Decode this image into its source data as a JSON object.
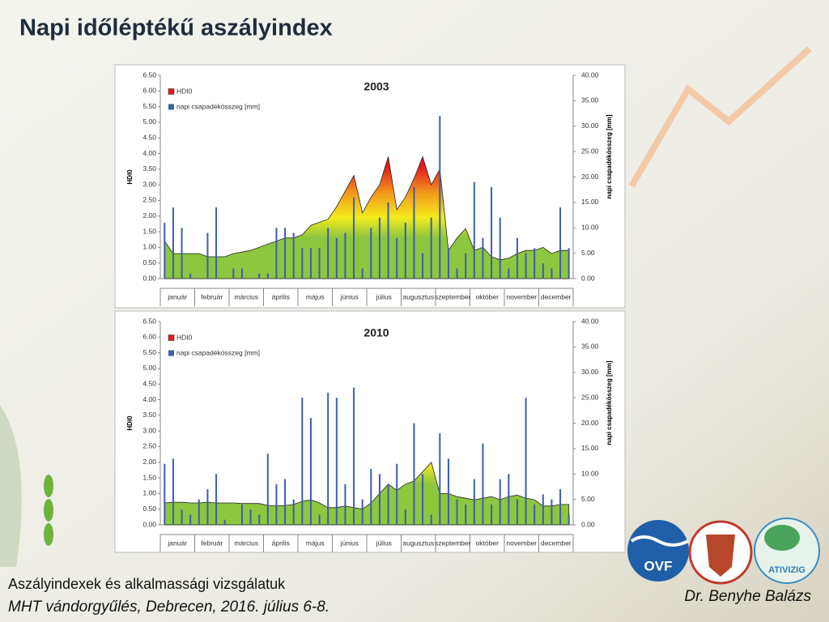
{
  "header": {
    "title": "Napi időléptékű aszályindex"
  },
  "chart_data": [
    {
      "type": "area-bar",
      "title": "2003",
      "categories": [
        "január",
        "február",
        "március",
        "április",
        "május",
        "június",
        "július",
        "augusztus",
        "szeptember",
        "október",
        "november",
        "december"
      ],
      "ylabel": "HDI0",
      "y2label": "napi csapadékösszeg [mm]",
      "ylim": [
        0,
        6.5
      ],
      "yticks": [
        {
          "value": 0,
          "label": "0.00"
        },
        {
          "value": 0.5,
          "label": "0.50"
        },
        {
          "value": 1,
          "label": "1.00"
        },
        {
          "value": 1.5,
          "label": "1.50"
        },
        {
          "value": 2,
          "label": "2.00"
        },
        {
          "value": 2.5,
          "label": "2.50"
        },
        {
          "value": 3,
          "label": "3.00"
        },
        {
          "value": 3.5,
          "label": "3.50"
        },
        {
          "value": 4,
          "label": "4.00"
        },
        {
          "value": 4.5,
          "label": "4.50"
        },
        {
          "value": 5,
          "label": "5.00"
        },
        {
          "value": 5.5,
          "label": "5.50"
        },
        {
          "value": 6,
          "label": "6.00"
        },
        {
          "value": 6.5,
          "label": "6.50"
        }
      ],
      "y2lim": [
        0,
        40
      ],
      "y2ticks": [
        {
          "value": 0,
          "label": "0.00"
        },
        {
          "value": 5,
          "label": "5.00"
        },
        {
          "value": 10,
          "label": "10.00"
        },
        {
          "value": 15,
          "label": "15.00"
        },
        {
          "value": 20,
          "label": "20.00"
        },
        {
          "value": 25,
          "label": "25.00"
        },
        {
          "value": 30,
          "label": "30.00"
        },
        {
          "value": 35,
          "label": "35.00"
        },
        {
          "value": 40,
          "label": "40.00"
        }
      ],
      "series": [
        {
          "name": "HDI0",
          "color": "#8dc63f",
          "values": [
            [
              1.2,
              0.8,
              0.8,
              0.8
            ],
            [
              0.8,
              0.7,
              0.7,
              0.7
            ],
            [
              0.8,
              0.85,
              0.9,
              1.0
            ],
            [
              1.1,
              1.2,
              1.3,
              1.3
            ],
            [
              1.4,
              1.7,
              1.8,
              1.9
            ],
            [
              2.3,
              2.8,
              3.3,
              2.1
            ],
            [
              2.6,
              3.0,
              3.9,
              2.2
            ],
            [
              2.6,
              3.2,
              3.9,
              3.0
            ],
            [
              3.5,
              0.9,
              1.3,
              1.6
            ],
            [
              0.9,
              1.0,
              0.7,
              0.6
            ],
            [
              0.65,
              0.8,
              0.9,
              0.9
            ],
            [
              1.0,
              0.8,
              0.9,
              0.9
            ]
          ]
        },
        {
          "name": "napi csapadékösszeg [mm]",
          "color": "#3a5fad",
          "axis": "y2",
          "values": [
            [
              11,
              14,
              10,
              1
            ],
            [
              0,
              9,
              14,
              0
            ],
            [
              2,
              2,
              0,
              1
            ],
            [
              1,
              10,
              10,
              9
            ],
            [
              6,
              6,
              6,
              10
            ],
            [
              8,
              9,
              16,
              2
            ],
            [
              10,
              12,
              15,
              8
            ],
            [
              11,
              18,
              5,
              12
            ],
            [
              32,
              6,
              2,
              5
            ],
            [
              19,
              8,
              18,
              12
            ],
            [
              2,
              8,
              5,
              6
            ],
            [
              3,
              2,
              14,
              6
            ]
          ]
        }
      ]
    },
    {
      "type": "area-bar",
      "title": "2010",
      "categories": [
        "január",
        "február",
        "március",
        "április",
        "május",
        "június",
        "július",
        "augusztus",
        "szeptember",
        "október",
        "november",
        "december"
      ],
      "ylabel": "HDI0",
      "y2label": "napi csapadékösszeg [mm]",
      "ylim": [
        0,
        6.5
      ],
      "yticks": [
        {
          "value": 0,
          "label": "0.00"
        },
        {
          "value": 0.5,
          "label": "0.50"
        },
        {
          "value": 1,
          "label": "1.00"
        },
        {
          "value": 1.5,
          "label": "1.50"
        },
        {
          "value": 2,
          "label": "2.00"
        },
        {
          "value": 2.5,
          "label": "2.50"
        },
        {
          "value": 3,
          "label": "3.00"
        },
        {
          "value": 3.5,
          "label": "3.50"
        },
        {
          "value": 4,
          "label": "4.00"
        },
        {
          "value": 4.5,
          "label": "4.50"
        },
        {
          "value": 5,
          "label": "5.00"
        },
        {
          "value": 5.5,
          "label": "5.50"
        },
        {
          "value": 6,
          "label": "6.00"
        },
        {
          "value": 6.5,
          "label": "6.50"
        }
      ],
      "y2lim": [
        0,
        40
      ],
      "y2ticks": [
        {
          "value": 0,
          "label": "0.00"
        },
        {
          "value": 5,
          "label": "5.00"
        },
        {
          "value": 10,
          "label": "10.00"
        },
        {
          "value": 15,
          "label": "15.00"
        },
        {
          "value": 20,
          "label": "20.00"
        },
        {
          "value": 25,
          "label": "25.00"
        },
        {
          "value": 30,
          "label": "30.00"
        },
        {
          "value": 35,
          "label": "35.00"
        },
        {
          "value": 40,
          "label": "40.00"
        }
      ],
      "series": [
        {
          "name": "HDI0",
          "color": "#8dc63f",
          "values": [
            [
              0.7,
              0.72,
              0.72,
              0.7
            ],
            [
              0.7,
              0.72,
              0.7,
              0.7
            ],
            [
              0.7,
              0.68,
              0.68,
              0.68
            ],
            [
              0.62,
              0.6,
              0.62,
              0.65
            ],
            [
              0.75,
              0.8,
              0.7,
              0.55
            ],
            [
              0.55,
              0.6,
              0.55,
              0.5
            ],
            [
              0.7,
              1.0,
              1.3,
              1.1
            ],
            [
              1.3,
              1.4,
              1.7,
              2.0
            ],
            [
              1.0,
              1.0,
              0.9,
              0.85
            ],
            [
              0.8,
              0.85,
              0.9,
              0.8
            ],
            [
              0.9,
              0.95,
              0.85,
              0.8
            ],
            [
              0.6,
              0.6,
              0.65,
              0.65
            ]
          ]
        },
        {
          "name": "napi csapadékösszeg [mm]",
          "color": "#3a5fad",
          "axis": "y2",
          "values": [
            [
              12,
              13,
              3,
              2
            ],
            [
              5,
              7,
              10,
              1
            ],
            [
              0,
              4,
              3,
              2
            ],
            [
              14,
              8,
              9,
              5
            ],
            [
              25,
              21,
              2,
              26
            ],
            [
              25,
              8,
              27,
              5
            ],
            [
              11,
              10,
              8,
              12
            ],
            [
              3,
              20,
              10,
              2
            ],
            [
              18,
              13,
              5,
              4
            ],
            [
              9,
              16,
              4,
              9
            ],
            [
              10,
              5,
              25,
              4
            ],
            [
              6,
              5,
              7,
              2
            ]
          ]
        }
      ]
    }
  ],
  "footer": {
    "subtitle": "Aszályindexek és alkalmassági vizsgálatuk",
    "event": "MHT vándorgyűlés, Debrecen, 2016. július 6-8.",
    "author": "Dr. Benyhe Balázs"
  },
  "logos": {
    "left": "OVF",
    "right": "ATIVIZIG"
  }
}
